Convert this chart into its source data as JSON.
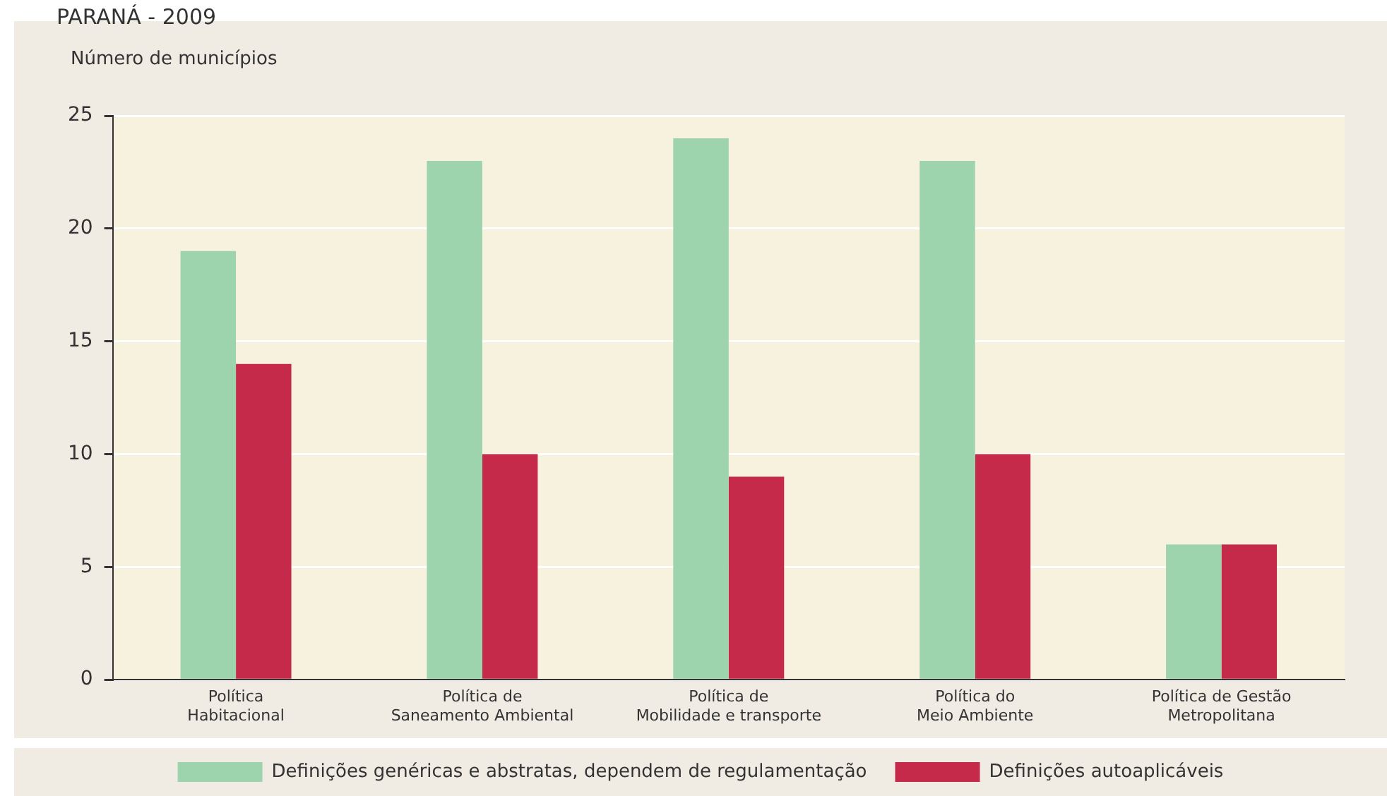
{
  "chart_data": {
    "type": "bar",
    "title": "PARANÁ - 2009",
    "ylabel": "Número de municípios",
    "categories": [
      "Política\nHabitacional",
      "Política de\nSaneamento Ambiental",
      "Política de\nMobilidade e transporte",
      "Política do\nMeio Ambiente",
      "Política de Gestão\nMetropolitana"
    ],
    "series": [
      {
        "name": "Definições genéricas e abstratas, dependem de regulamentação",
        "color": "#9dd4ae",
        "values": [
          19,
          23,
          24,
          23,
          6
        ]
      },
      {
        "name": "Definições autoaplicáveis",
        "color": "#c52a4b",
        "values": [
          14,
          10,
          9,
          10,
          6
        ]
      }
    ],
    "ylim": [
      0,
      25
    ],
    "yticks": [
      0,
      5,
      10,
      15,
      20,
      25
    ],
    "grid": "y",
    "legend": "bottom"
  }
}
